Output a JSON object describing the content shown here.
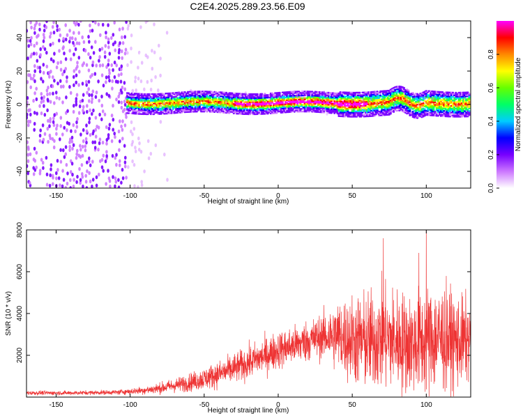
{
  "figure": {
    "title": "C2E4.2025.289.23.56.E09"
  },
  "chart_data": [
    {
      "type": "heatmap",
      "xlabel": "Height of straight line (km)",
      "ylabel": "Frequency (Hz)",
      "xlim": [
        -170,
        130
      ],
      "ylim": [
        -50,
        50
      ],
      "xticks": [
        -150,
        -100,
        -50,
        0,
        50,
        100
      ],
      "yticks": [
        -40,
        -20,
        0,
        20,
        40
      ],
      "colorbar": {
        "label": "Normalized spectral amplitude",
        "range": [
          0,
          1
        ],
        "ticks": [
          "0.0",
          "0.2",
          "0.4",
          "0.6",
          "0.8"
        ],
        "tick_values": [
          0,
          0.2,
          0.4,
          0.6,
          0.8
        ],
        "colormap": [
          "#ffffff",
          "#cc77ff",
          "#7700ff",
          "#0000ff",
          "#00ccff",
          "#00ff66",
          "#66ff00",
          "#ffff00",
          "#ff8800",
          "#ff0000",
          "#ff00ff"
        ]
      },
      "signal_band": {
        "x_start": -102,
        "x_end": 130,
        "center_freq_hz": 1,
        "halfwidth_hz": 4,
        "peak_region": [
          -30,
          60
        ]
      },
      "noise_region": {
        "dense_until_x": -102,
        "fades_out_by_x": -70
      }
    },
    {
      "type": "line",
      "xlabel": "Height of straight line (km)",
      "ylabel": "SNR (10 * v/v)",
      "xlim": [
        -170,
        130
      ],
      "ylim": [
        0,
        8000
      ],
      "xticks": [
        -150,
        -100,
        -50,
        0,
        50,
        100
      ],
      "yticks": [
        2000,
        4000,
        6000,
        8000
      ],
      "series": [
        {
          "name": "SNR",
          "color": "#ee3333",
          "envelope": {
            "x": [
              -170,
              -140,
              -110,
              -100,
              -90,
              -80,
              -70,
              -60,
              -50,
              -40,
              -30,
              -20,
              -10,
              0,
              10,
              20,
              30,
              40,
              50,
              60,
              70,
              80,
              90,
              100,
              110,
              120,
              130
            ],
            "median": [
              200,
              200,
              230,
              270,
              330,
              420,
              560,
              700,
              880,
              1100,
              1350,
              1650,
              1950,
              2250,
              2450,
              2700,
              2900,
              2950,
              2750,
              2650,
              2850,
              2700,
              2550,
              2700,
              2850,
              2650,
              2750
            ],
            "spread": [
              90,
              90,
              100,
              130,
              170,
              230,
              300,
              380,
              470,
              560,
              640,
              700,
              760,
              800,
              830,
              880,
              950,
              1500,
              1900,
              2100,
              2200,
              2200,
              2100,
              2300,
              2300,
              2000,
              1700
            ]
          },
          "notable_peaks": [
            {
              "x": 71,
              "y": 7600
            },
            {
              "x": 100,
              "y": 8000
            },
            {
              "x": 95,
              "y": 6900
            }
          ]
        }
      ]
    }
  ]
}
